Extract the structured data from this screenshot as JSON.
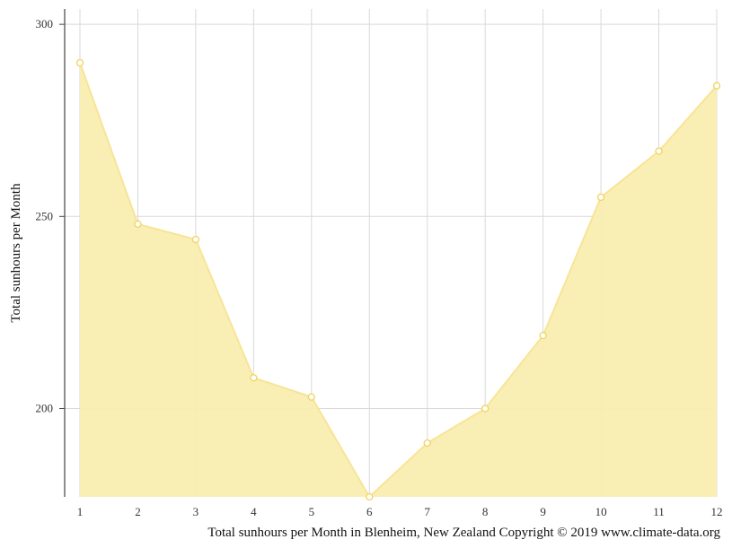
{
  "chart_data": {
    "type": "area",
    "x": [
      1,
      2,
      3,
      4,
      5,
      6,
      7,
      8,
      9,
      10,
      11,
      12
    ],
    "series": [
      {
        "values": [
          290,
          248,
          244,
          208,
          203,
          177,
          191,
          200,
          219,
          255,
          267,
          284
        ]
      }
    ],
    "xlabel": "Total sunhours per Month in Blenheim, New Zealand Copyright © 2019 www.climate-data.org",
    "ylabel": "Total sunhours per Month",
    "x_ticks": [
      "1",
      "2",
      "3",
      "4",
      "5",
      "6",
      "7",
      "8",
      "9",
      "10",
      "11",
      "12"
    ],
    "y_ticks": [
      200,
      250,
      300
    ],
    "ylim": [
      177,
      304
    ],
    "grid": true,
    "colors": {
      "fill": "#f9eeb0",
      "line": "#f8e496",
      "marker_stroke": "#f1d35c",
      "grid": "#d9d9d9",
      "axis": "#444444"
    }
  }
}
